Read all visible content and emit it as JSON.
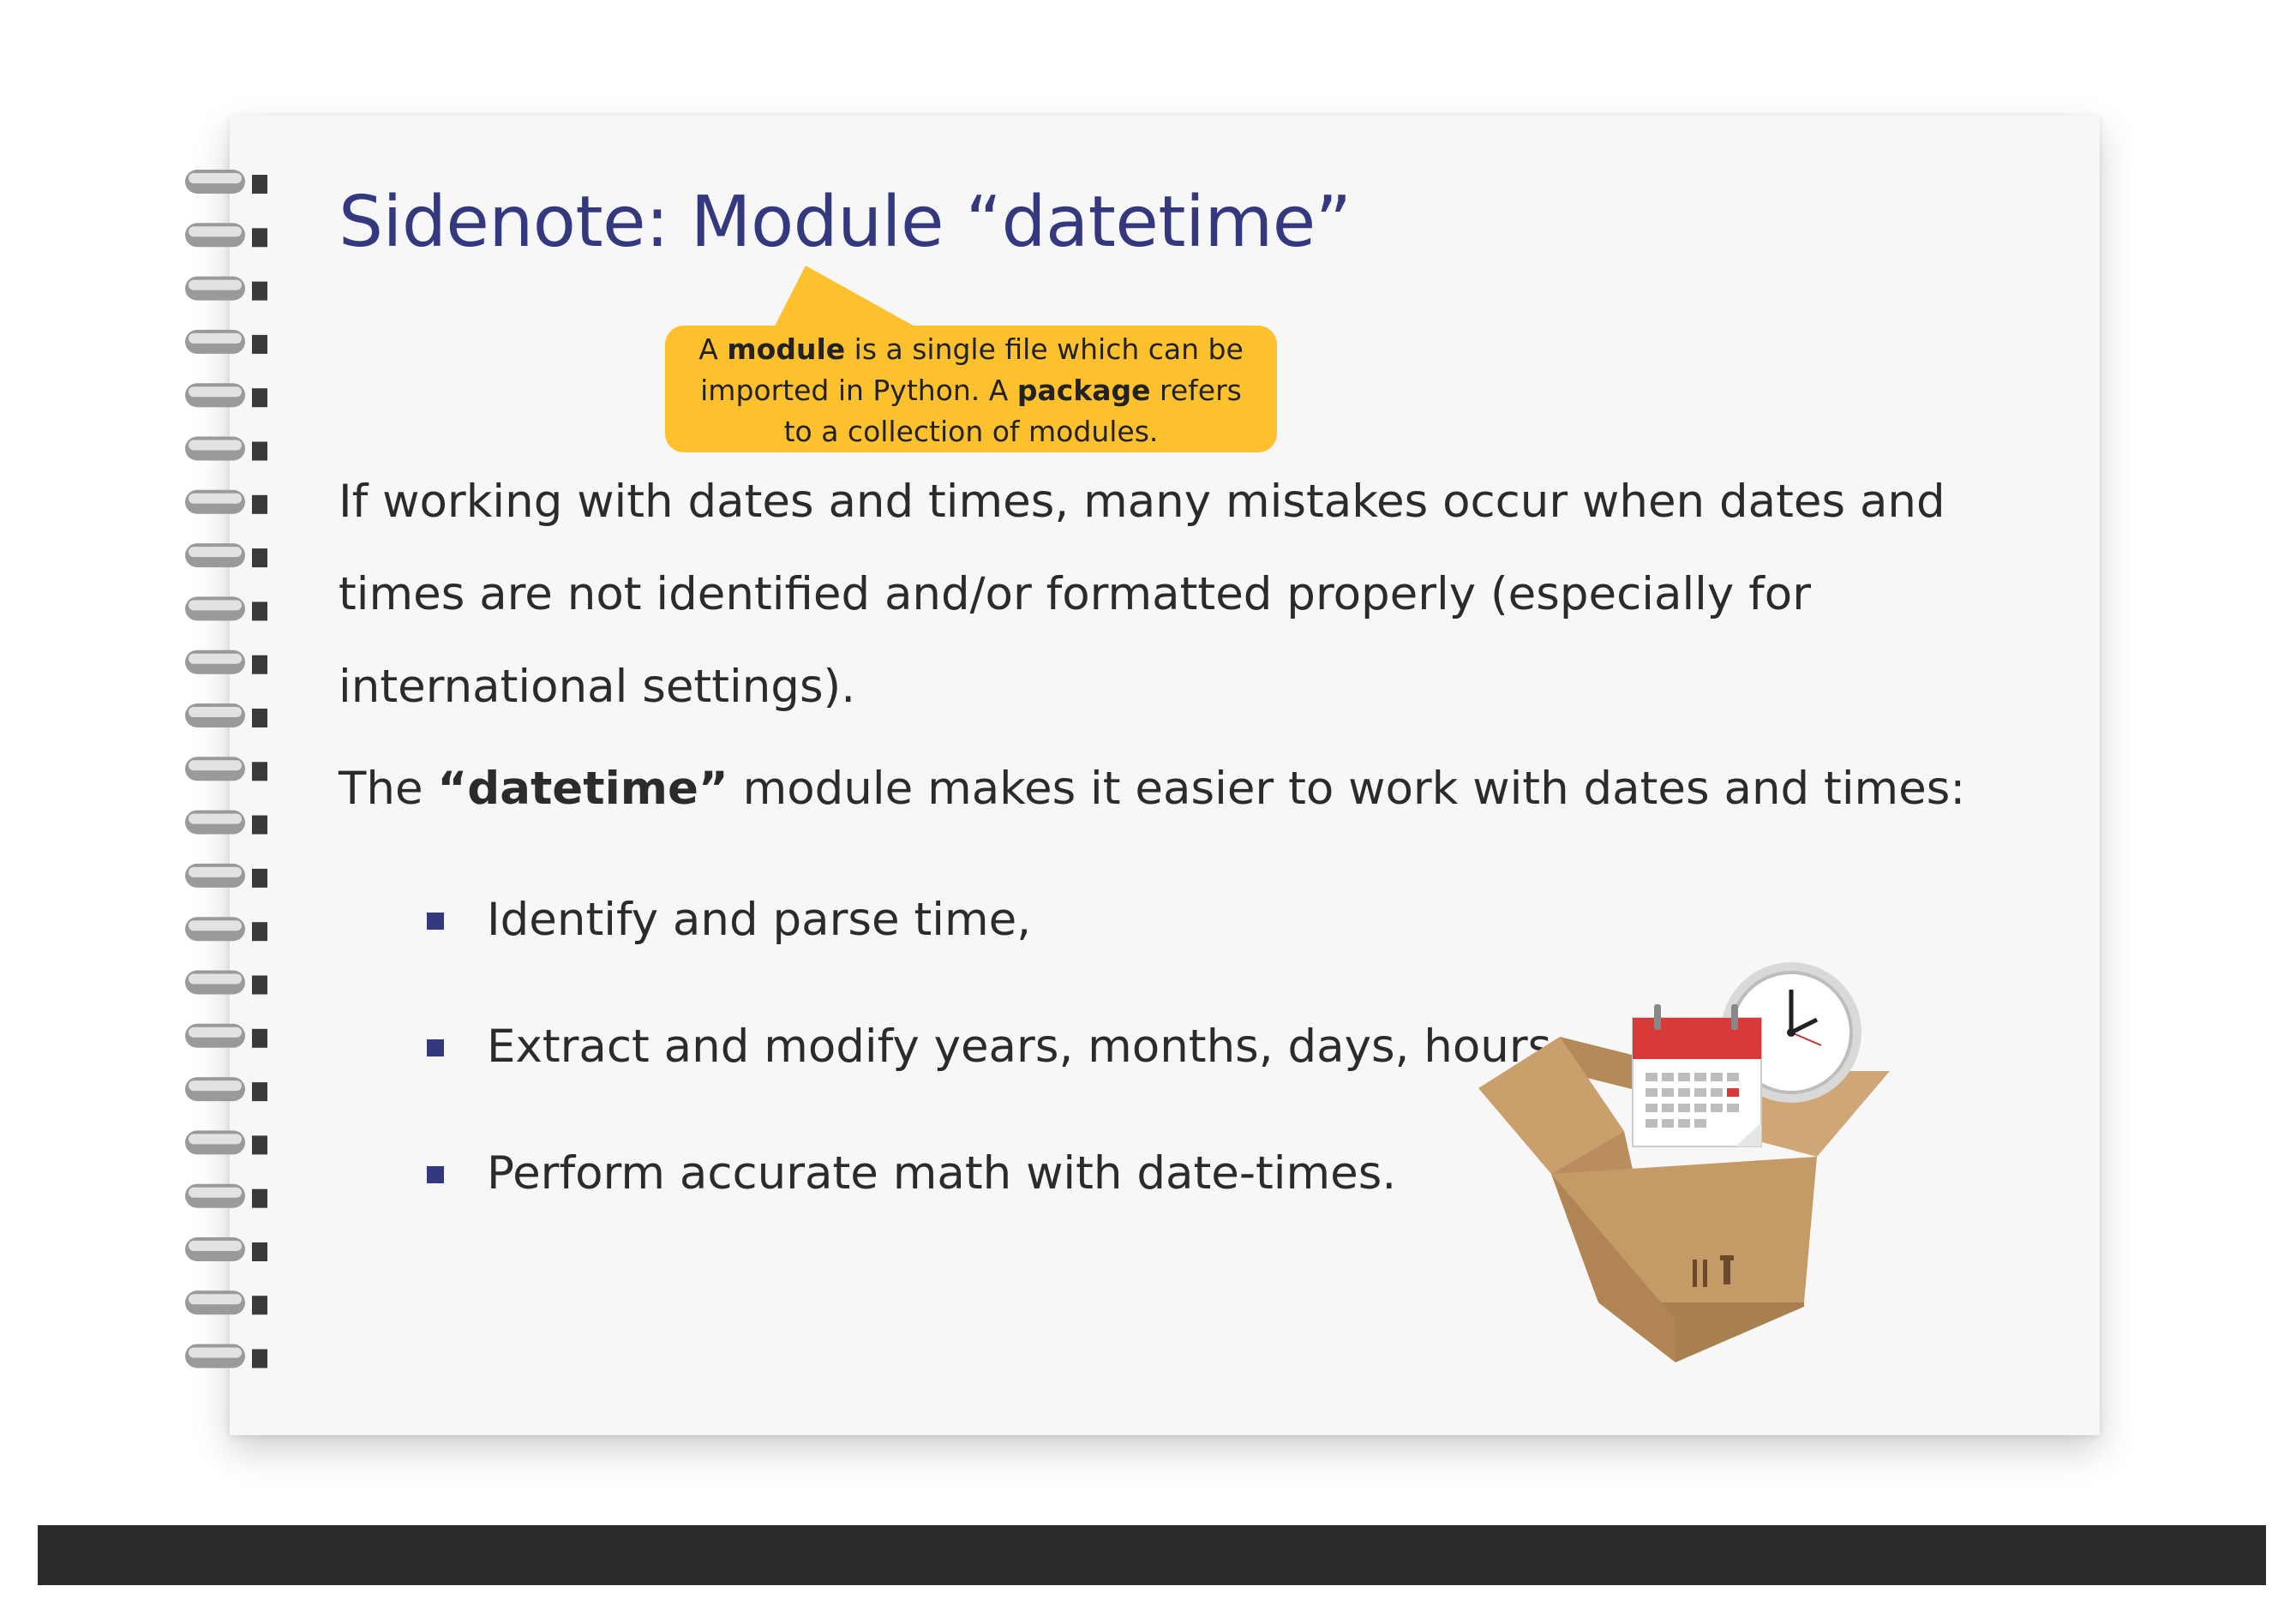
{
  "title": "Sidenote: Module “datetime”",
  "callout": {
    "line1_prefix": "A ",
    "line1_bold": "module",
    "line1_suffix": " is a single file which can be",
    "line2_prefix": "imported in Python. A ",
    "line2_bold": "package",
    "line2_suffix": " refers",
    "line3": "to a collection of modules."
  },
  "paragraph1": {
    "line1": "If working with dates and times, many mistakes occur when dates and",
    "line2": "times are not identified and/or formatted properly (especially for",
    "line3": "international settings)."
  },
  "paragraph2": {
    "prefix": "The ",
    "bold": "“datetime”",
    "suffix": " module makes it easier to work with dates and times:"
  },
  "bullets": [
    "Identify and parse time,",
    "Extract and modify years, months, days, hours, …",
    "Perform accurate math with date-times."
  ],
  "colors": {
    "title": "#34397f",
    "callout": "#fcc12d",
    "bullet": "#34397f",
    "calendar_header": "#d83a3a",
    "box": "#c8a06e"
  },
  "icons": {
    "spiral": "spiral-binding-icon",
    "illustration": "box-calendar-clock-icon"
  }
}
